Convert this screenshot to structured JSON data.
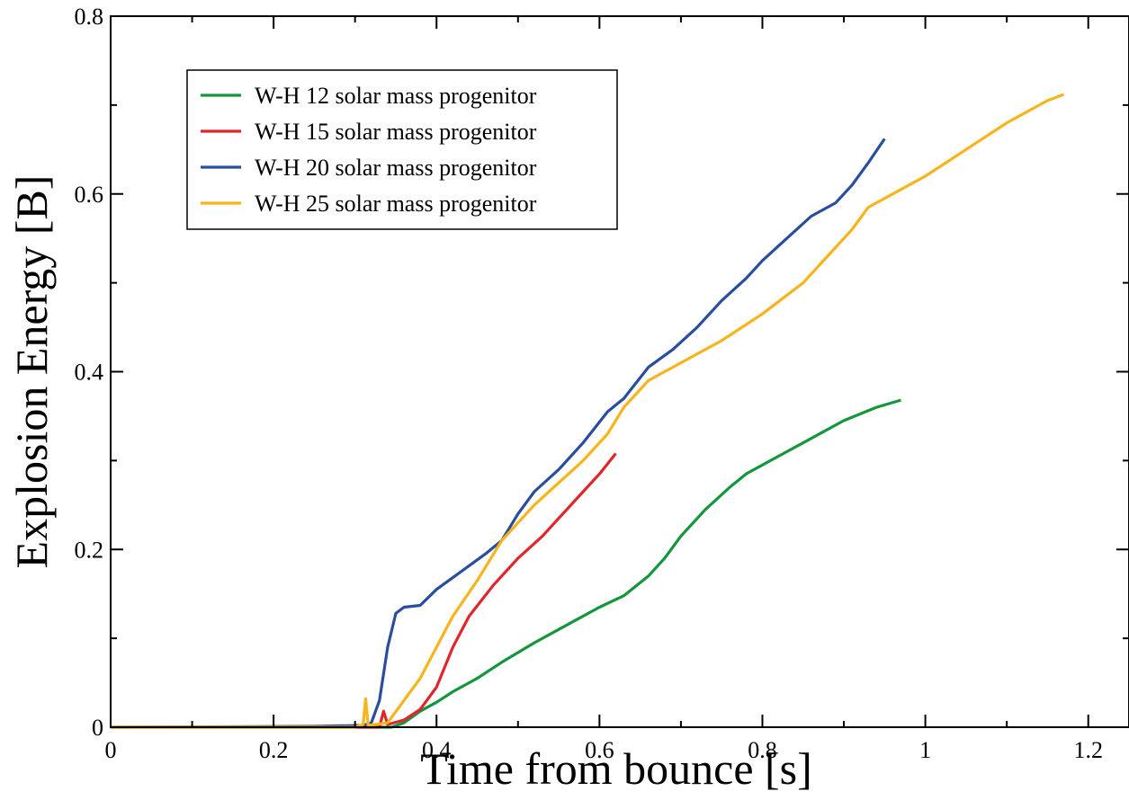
{
  "chart_data": {
    "type": "line",
    "title": "",
    "xlabel": "Time from bounce [s]",
    "ylabel": "Explosion Energy [B]",
    "xlim": [
      0,
      1.25
    ],
    "ylim": [
      0,
      0.8
    ],
    "x_ticks": [
      0,
      0.2,
      0.4,
      0.6,
      0.8,
      1,
      1.2
    ],
    "x_tick_labels": [
      "0",
      "0.2",
      "0.4",
      "0.6",
      "0.8",
      "1",
      "1.2"
    ],
    "y_ticks": [
      0,
      0.2,
      0.4,
      0.6,
      0.8
    ],
    "y_tick_labels": [
      "0",
      "0.2",
      "0.4",
      "0.6",
      "0.8"
    ],
    "grid": false,
    "legend_position": "top-left",
    "series": [
      {
        "name": "W-H 12 solar mass progenitor",
        "color": "#14963c",
        "points": [
          [
            0,
            0
          ],
          [
            0.3,
            0
          ],
          [
            0.345,
            0
          ],
          [
            0.36,
            0.005
          ],
          [
            0.38,
            0.018
          ],
          [
            0.4,
            0.028
          ],
          [
            0.42,
            0.04
          ],
          [
            0.45,
            0.055
          ],
          [
            0.48,
            0.073
          ],
          [
            0.52,
            0.095
          ],
          [
            0.56,
            0.115
          ],
          [
            0.6,
            0.135
          ],
          [
            0.63,
            0.148
          ],
          [
            0.66,
            0.17
          ],
          [
            0.68,
            0.19
          ],
          [
            0.7,
            0.215
          ],
          [
            0.73,
            0.245
          ],
          [
            0.76,
            0.27
          ],
          [
            0.78,
            0.285
          ],
          [
            0.82,
            0.305
          ],
          [
            0.86,
            0.325
          ],
          [
            0.9,
            0.345
          ],
          [
            0.94,
            0.36
          ],
          [
            0.97,
            0.368
          ]
        ]
      },
      {
        "name": "W-H 15 solar mass progenitor",
        "color": "#e0262b",
        "points": [
          [
            0,
            0
          ],
          [
            0.3,
            0
          ],
          [
            0.33,
            0
          ],
          [
            0.335,
            0.018
          ],
          [
            0.34,
            0.003
          ],
          [
            0.36,
            0.008
          ],
          [
            0.38,
            0.02
          ],
          [
            0.4,
            0.045
          ],
          [
            0.42,
            0.09
          ],
          [
            0.44,
            0.125
          ],
          [
            0.47,
            0.16
          ],
          [
            0.5,
            0.19
          ],
          [
            0.53,
            0.215
          ],
          [
            0.55,
            0.235
          ],
          [
            0.58,
            0.265
          ],
          [
            0.6,
            0.285
          ],
          [
            0.62,
            0.308
          ]
        ]
      },
      {
        "name": "W-H 20 solar mass progenitor",
        "color": "#2a4e9e",
        "points": [
          [
            0,
            0
          ],
          [
            0.25,
            0.001
          ],
          [
            0.31,
            0.002
          ],
          [
            0.32,
            0.005
          ],
          [
            0.33,
            0.03
          ],
          [
            0.34,
            0.09
          ],
          [
            0.35,
            0.128
          ],
          [
            0.36,
            0.135
          ],
          [
            0.38,
            0.137
          ],
          [
            0.4,
            0.155
          ],
          [
            0.43,
            0.175
          ],
          [
            0.46,
            0.195
          ],
          [
            0.48,
            0.21
          ],
          [
            0.5,
            0.24
          ],
          [
            0.52,
            0.265
          ],
          [
            0.55,
            0.29
          ],
          [
            0.58,
            0.32
          ],
          [
            0.61,
            0.355
          ],
          [
            0.63,
            0.37
          ],
          [
            0.66,
            0.405
          ],
          [
            0.69,
            0.425
          ],
          [
            0.72,
            0.45
          ],
          [
            0.75,
            0.48
          ],
          [
            0.78,
            0.505
          ],
          [
            0.8,
            0.525
          ],
          [
            0.83,
            0.55
          ],
          [
            0.86,
            0.575
          ],
          [
            0.89,
            0.59
          ],
          [
            0.91,
            0.61
          ],
          [
            0.93,
            0.635
          ],
          [
            0.95,
            0.662
          ]
        ]
      },
      {
        "name": "W-H 25 solar mass progenitor",
        "color": "#f8b41c",
        "points": [
          [
            0,
            0
          ],
          [
            0.3,
            0
          ],
          [
            0.31,
            0.003
          ],
          [
            0.313,
            0.032
          ],
          [
            0.316,
            0.002
          ],
          [
            0.34,
            0.005
          ],
          [
            0.36,
            0.03
          ],
          [
            0.38,
            0.055
          ],
          [
            0.4,
            0.09
          ],
          [
            0.42,
            0.125
          ],
          [
            0.45,
            0.165
          ],
          [
            0.48,
            0.21
          ],
          [
            0.52,
            0.25
          ],
          [
            0.55,
            0.275
          ],
          [
            0.58,
            0.3
          ],
          [
            0.61,
            0.33
          ],
          [
            0.63,
            0.36
          ],
          [
            0.66,
            0.39
          ],
          [
            0.7,
            0.41
          ],
          [
            0.75,
            0.435
          ],
          [
            0.8,
            0.465
          ],
          [
            0.85,
            0.5
          ],
          [
            0.88,
            0.53
          ],
          [
            0.91,
            0.56
          ],
          [
            0.93,
            0.585
          ],
          [
            0.97,
            0.605
          ],
          [
            1.0,
            0.62
          ],
          [
            1.05,
            0.65
          ],
          [
            1.1,
            0.68
          ],
          [
            1.15,
            0.705
          ],
          [
            1.17,
            0.712
          ]
        ]
      }
    ]
  }
}
